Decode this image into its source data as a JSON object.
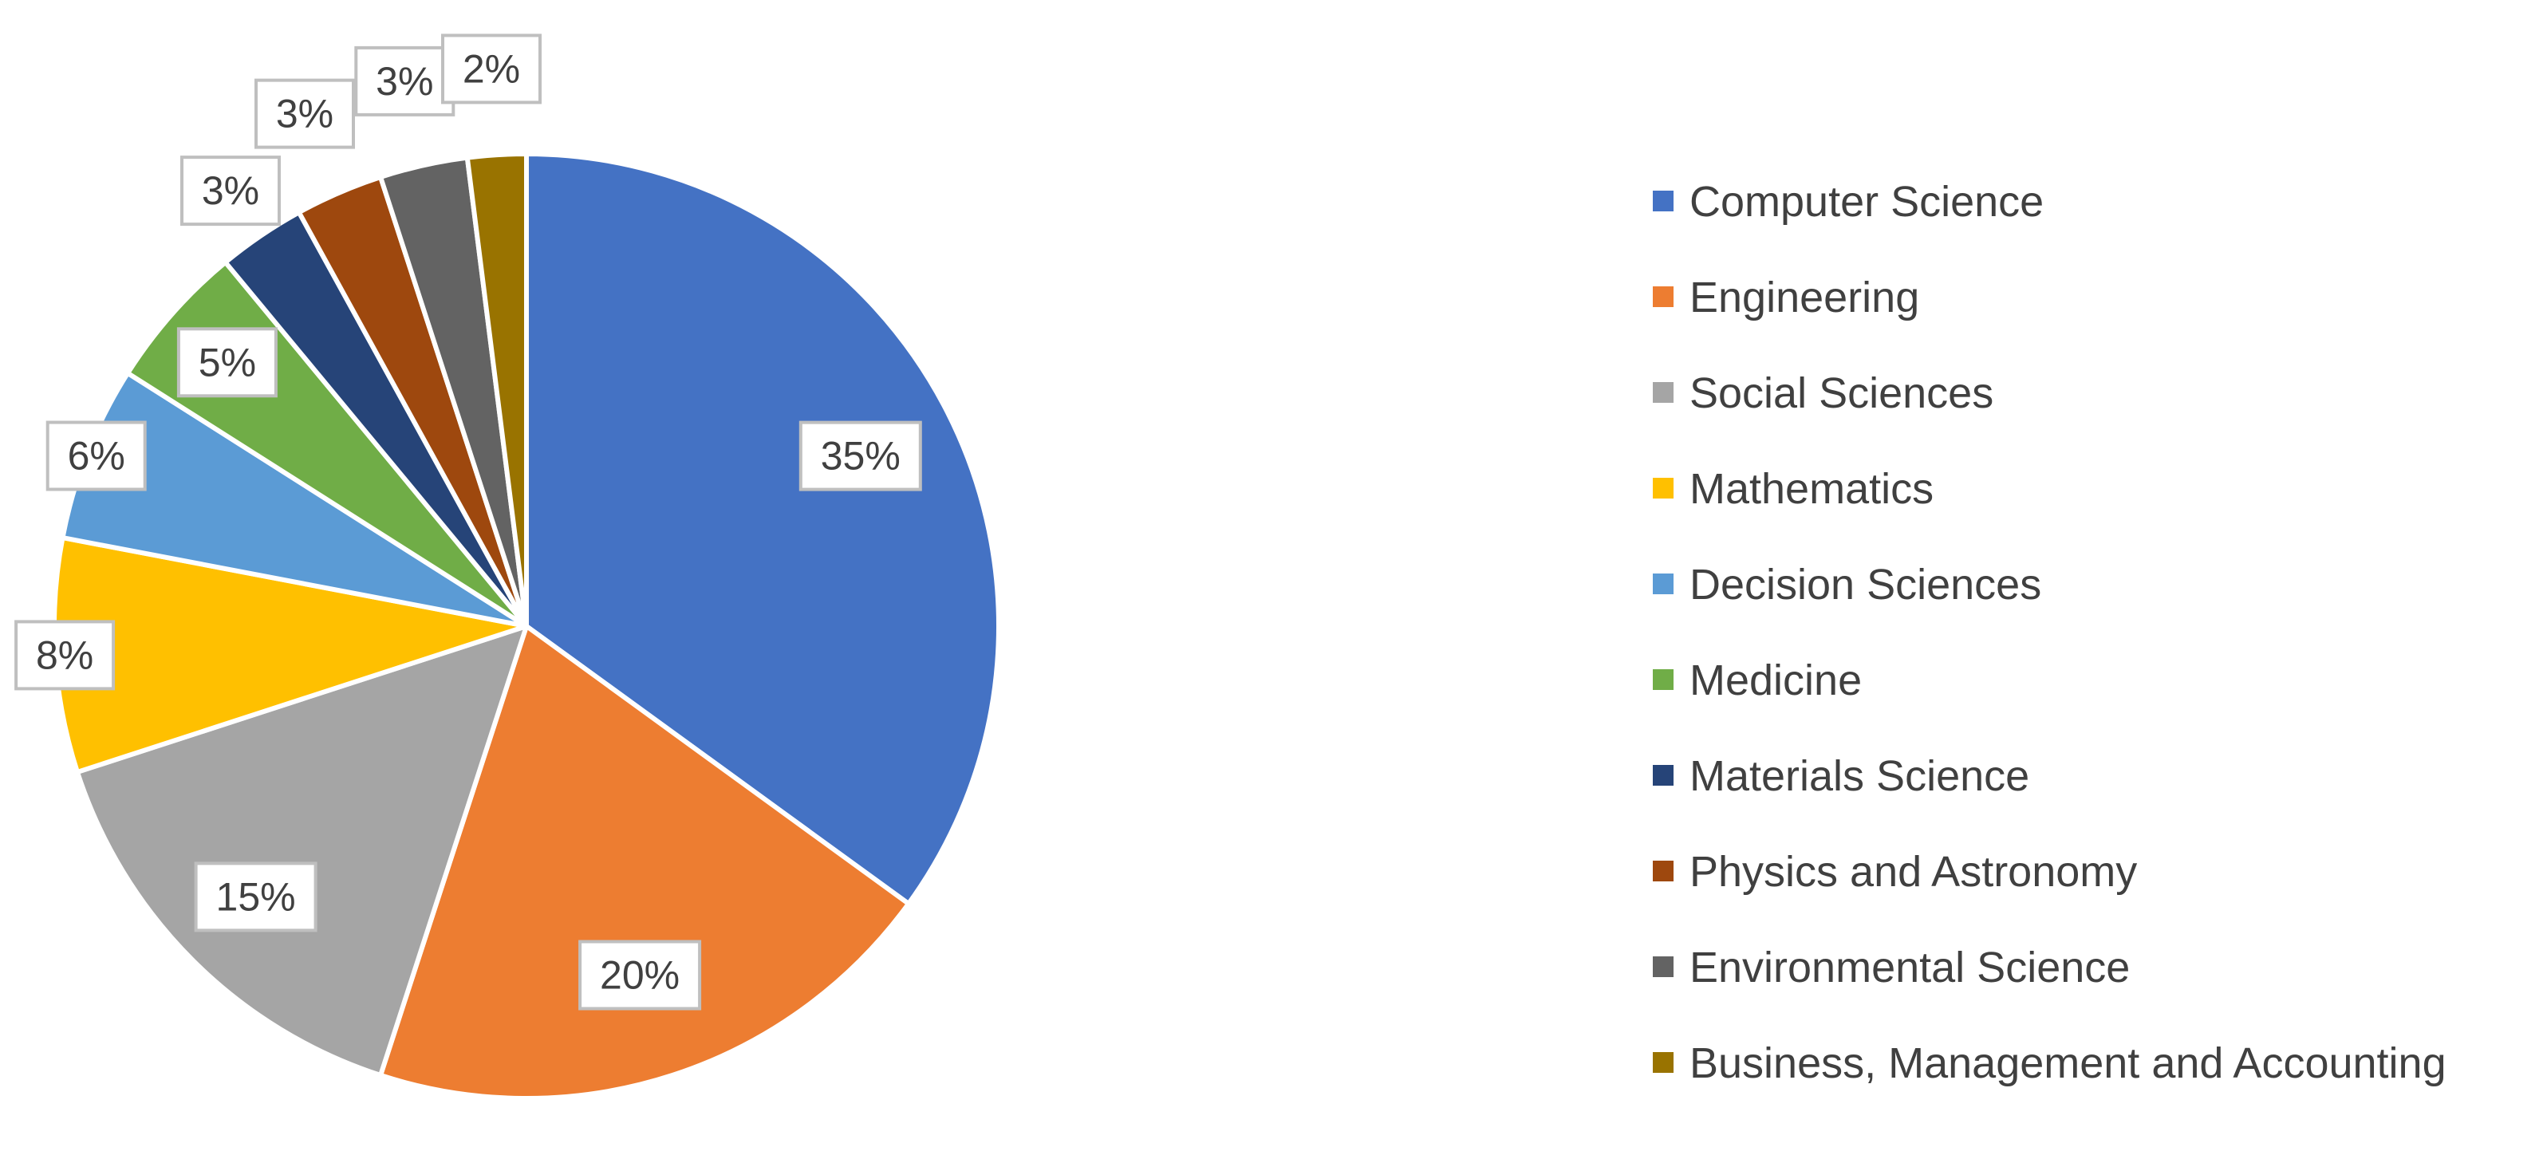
{
  "chart_data": {
    "type": "pie",
    "title": "",
    "legend_position": "right",
    "series": [
      {
        "values": [
          35,
          20,
          15,
          8,
          6,
          5,
          3,
          3,
          3,
          2
        ]
      }
    ],
    "categories": [
      "Computer Science",
      "Engineering",
      "Social Sciences",
      "Mathematics",
      "Decision Sciences",
      "Medicine",
      "Materials Science",
      "Physics and Astronomy",
      "Environmental Science",
      "Business, Management and Accounting"
    ],
    "labels": [
      "35%",
      "20%",
      "15%",
      "8%",
      "6%",
      "5%",
      "3%",
      "3%",
      "3%",
      "2%"
    ],
    "colors": [
      "#4472C4",
      "#ED7D31",
      "#A5A5A5",
      "#FFC000",
      "#5B9BD5",
      "#70AD47",
      "#264478",
      "#9E480E",
      "#636363",
      "#997300"
    ]
  }
}
